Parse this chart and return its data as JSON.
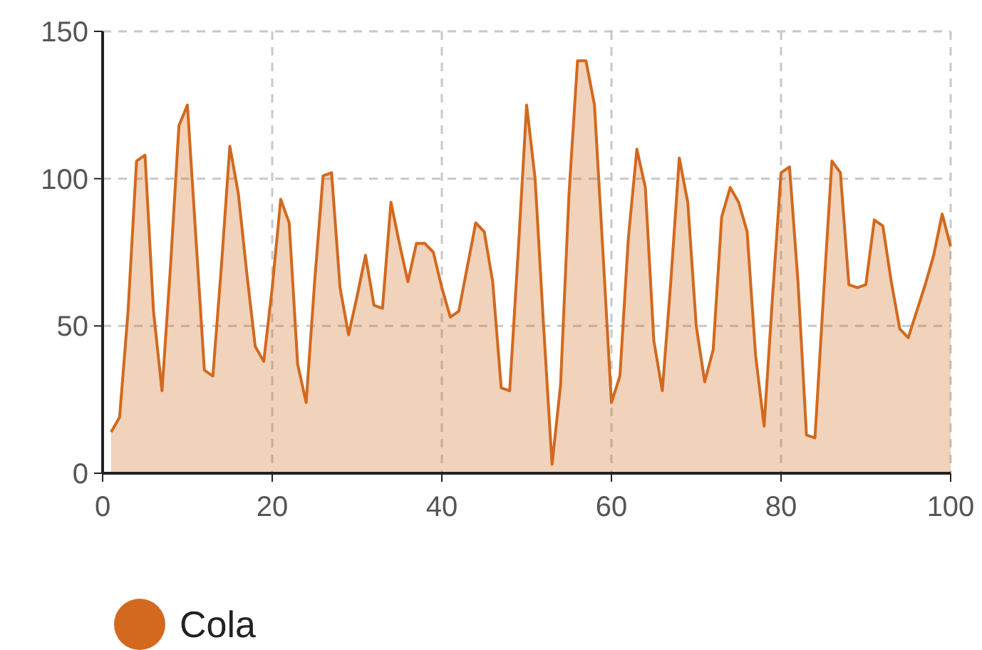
{
  "chart_data": {
    "type": "area",
    "x": [
      1,
      2,
      3,
      4,
      5,
      6,
      7,
      8,
      9,
      10,
      11,
      12,
      13,
      14,
      15,
      16,
      17,
      18,
      19,
      20,
      21,
      22,
      23,
      24,
      25,
      26,
      27,
      28,
      29,
      30,
      31,
      32,
      33,
      34,
      35,
      36,
      37,
      38,
      39,
      40,
      41,
      42,
      43,
      44,
      45,
      46,
      47,
      48,
      49,
      50,
      51,
      52,
      53,
      54,
      55,
      56,
      57,
      58,
      59,
      60,
      61,
      62,
      63,
      64,
      65,
      66,
      67,
      68,
      69,
      70,
      71,
      72,
      73,
      74,
      75,
      76,
      77,
      78,
      79,
      80,
      81,
      82,
      83,
      84,
      85,
      86,
      87,
      88,
      89,
      90,
      91,
      92,
      93,
      94,
      95,
      96,
      97,
      98,
      99,
      100
    ],
    "series": [
      {
        "name": "Cola",
        "color": "#d2691e",
        "values": [
          14,
          19,
          55,
          106,
          108,
          55,
          28,
          70,
          118,
          125,
          80,
          35,
          33,
          70,
          111,
          95,
          68,
          43,
          38,
          63,
          93,
          85,
          37,
          24,
          65,
          101,
          102,
          63,
          47,
          60,
          74,
          57,
          56,
          92,
          78,
          65,
          78,
          78,
          75,
          63,
          53,
          55,
          70,
          85,
          82,
          65,
          29,
          28,
          75,
          125,
          100,
          50,
          3,
          30,
          95,
          140,
          140,
          125,
          75,
          24,
          33,
          80,
          110,
          97,
          45,
          28,
          65,
          107,
          92,
          50,
          31,
          42,
          87,
          97,
          92,
          82,
          40,
          16,
          60,
          102,
          104,
          65,
          13,
          12,
          60,
          106,
          102,
          64,
          63,
          64,
          86,
          84,
          65,
          49,
          46,
          55,
          64,
          74,
          88,
          77
        ]
      }
    ],
    "xlim": [
      0,
      100
    ],
    "xticks": [
      0,
      20,
      40,
      60,
      80,
      100
    ],
    "ylim": [
      0,
      150
    ],
    "yticks": [
      0,
      50,
      100,
      150
    ],
    "grid": true,
    "legend": "bottom"
  }
}
